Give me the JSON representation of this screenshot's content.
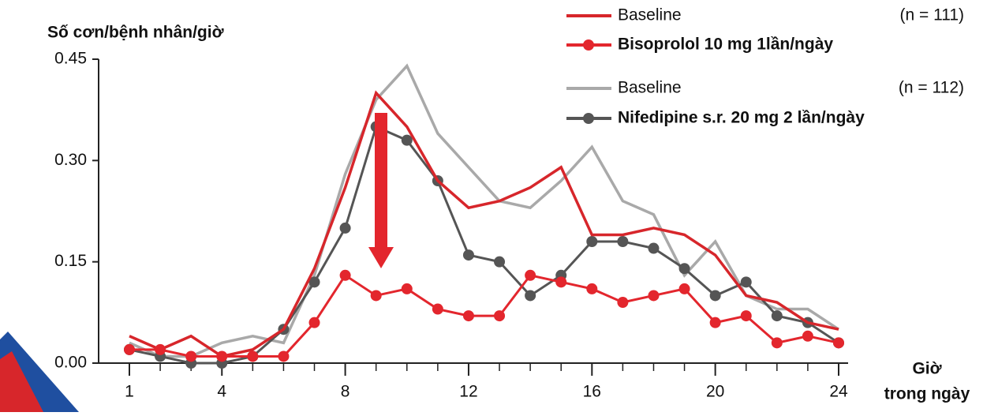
{
  "chart_data": {
    "type": "line",
    "y_label": "Số cơn/bệnh nhân/giờ",
    "x_label": [
      "Giờ",
      "trong ngày"
    ],
    "x": [
      1,
      2,
      3,
      4,
      5,
      6,
      7,
      8,
      9,
      10,
      11,
      12,
      13,
      14,
      15,
      16,
      17,
      18,
      19,
      20,
      21,
      22,
      23,
      24
    ],
    "xlim": [
      1,
      24
    ],
    "xticks": [
      1,
      4,
      8,
      12,
      16,
      20,
      24
    ],
    "ylim": [
      0,
      0.45
    ],
    "yticks": [
      {
        "value": 0,
        "label": "0.00"
      },
      0.15,
      {
        "value": 0.3,
        "label": "0.30"
      },
      0.45
    ],
    "annotations": [
      "(n = 111)",
      "(n = 112)"
    ],
    "series": [
      {
        "name": "Baseline",
        "color": "#d7262b",
        "marker": false,
        "values": [
          0.04,
          0.02,
          0.04,
          0.01,
          0.02,
          0.05,
          0.14,
          0.26,
          0.4,
          0.35,
          0.27,
          0.23,
          0.24,
          0.26,
          0.29,
          0.19,
          0.19,
          0.2,
          0.19,
          0.16,
          0.1,
          0.09,
          0.06,
          0.05
        ]
      },
      {
        "name": "Bisoprolol 10 mg 1lần/ngày",
        "color": "#e3262d",
        "marker": true,
        "values": [
          0.02,
          0.02,
          0.01,
          0.01,
          0.01,
          0.01,
          0.06,
          0.13,
          0.1,
          0.11,
          0.08,
          0.07,
          0.07,
          0.13,
          0.12,
          0.11,
          0.09,
          0.1,
          0.11,
          0.06,
          0.07,
          0.03,
          0.04,
          0.03
        ]
      },
      {
        "name": "Baseline",
        "color": "#a9a9a9",
        "marker": false,
        "values": [
          0.03,
          0.01,
          0.01,
          0.03,
          0.04,
          0.03,
          0.13,
          0.28,
          0.39,
          0.44,
          0.34,
          0.29,
          0.24,
          0.23,
          0.27,
          0.32,
          0.24,
          0.22,
          0.13,
          0.18,
          0.1,
          0.08,
          0.08,
          0.05
        ]
      },
      {
        "name": "Nifedipine s.r. 20 mg 2 lần/ngày",
        "color": "#555555",
        "marker": true,
        "values": [
          0.02,
          0.01,
          0.0,
          0.0,
          0.01,
          0.05,
          0.12,
          0.2,
          0.35,
          0.33,
          0.27,
          0.16,
          0.15,
          0.1,
          0.13,
          0.18,
          0.18,
          0.17,
          0.14,
          0.1,
          0.12,
          0.07,
          0.06,
          0.03
        ]
      }
    ]
  }
}
